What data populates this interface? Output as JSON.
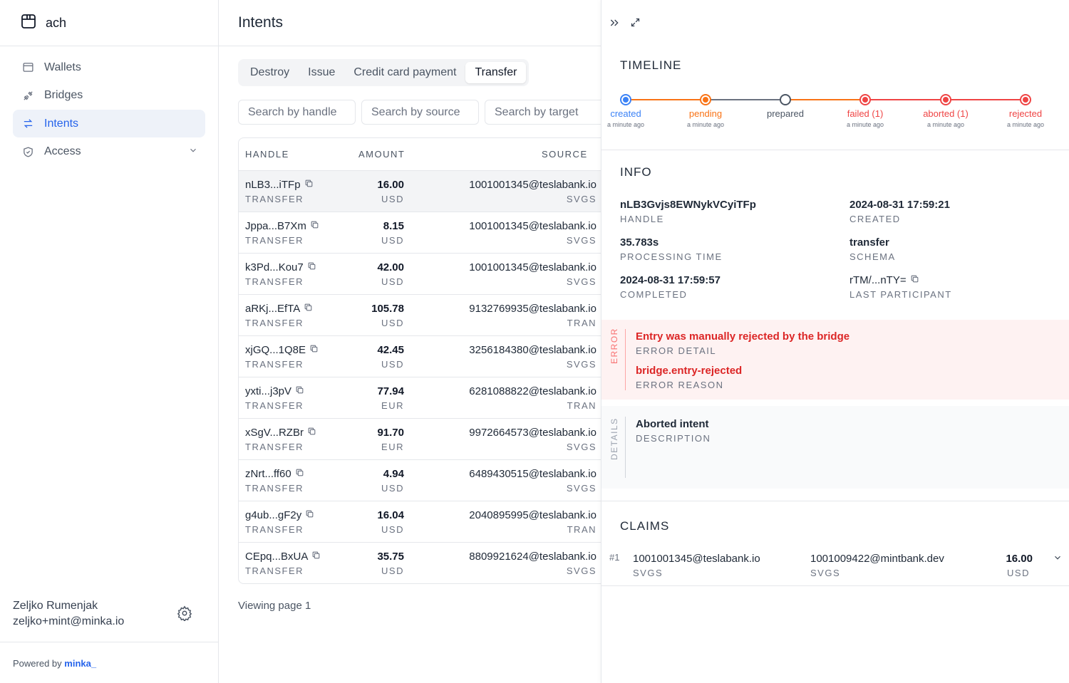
{
  "app": {
    "name": "ach"
  },
  "sidebar": {
    "items": [
      {
        "label": "Wallets",
        "icon": "wallet-icon"
      },
      {
        "label": "Bridges",
        "icon": "plug-icon"
      },
      {
        "label": "Intents",
        "icon": "arrows-swap-icon",
        "active": true
      },
      {
        "label": "Access",
        "icon": "shield-icon",
        "has_submenu": true
      }
    ],
    "user_name": "Zeljko Rumenjak",
    "user_email": "zeljko+mint@minka.io",
    "powered_by": "Powered by",
    "powered_logo": "minka_"
  },
  "main": {
    "title": "Intents",
    "tabs": [
      {
        "label": "Destroy"
      },
      {
        "label": "Issue"
      },
      {
        "label": "Credit card payment"
      },
      {
        "label": "Transfer",
        "active": true
      }
    ],
    "search": {
      "handle_placeholder": "Search by handle",
      "source_placeholder": "Search by source",
      "target_placeholder": "Search by target"
    },
    "columns": {
      "handle": "HANDLE",
      "amount": "AMOUNT",
      "source": "SOURCE"
    },
    "rows": [
      {
        "handle": "nLB3...iTFp",
        "type": "TRANSFER",
        "amount": "16.00",
        "currency": "USD",
        "source": "1001001345@teslabank.io",
        "bank": "SVGS"
      },
      {
        "handle": "Jppa...B7Xm",
        "type": "TRANSFER",
        "amount": "8.15",
        "currency": "USD",
        "source": "1001001345@teslabank.io",
        "bank": "SVGS"
      },
      {
        "handle": "k3Pd...Kou7",
        "type": "TRANSFER",
        "amount": "42.00",
        "currency": "USD",
        "source": "1001001345@teslabank.io",
        "bank": "SVGS"
      },
      {
        "handle": "aRKj...EfTA",
        "type": "TRANSFER",
        "amount": "105.78",
        "currency": "USD",
        "source": "9132769935@teslabank.io",
        "bank": "TRAN"
      },
      {
        "handle": "xjGQ...1Q8E",
        "type": "TRANSFER",
        "amount": "42.45",
        "currency": "USD",
        "source": "3256184380@teslabank.io",
        "bank": "SVGS"
      },
      {
        "handle": "yxti...j3pV",
        "type": "TRANSFER",
        "amount": "77.94",
        "currency": "EUR",
        "source": "6281088822@teslabank.io",
        "bank": "TRAN"
      },
      {
        "handle": "xSgV...RZBr",
        "type": "TRANSFER",
        "amount": "91.70",
        "currency": "EUR",
        "source": "9972664573@teslabank.io",
        "bank": "SVGS"
      },
      {
        "handle": "zNrt...ff60",
        "type": "TRANSFER",
        "amount": "4.94",
        "currency": "USD",
        "source": "6489430515@teslabank.io",
        "bank": "SVGS"
      },
      {
        "handle": "g4ub...gF2y",
        "type": "TRANSFER",
        "amount": "16.04",
        "currency": "USD",
        "source": "2040895995@teslabank.io",
        "bank": "TRAN"
      },
      {
        "handle": "CEpq...BxUA",
        "type": "TRANSFER",
        "amount": "35.75",
        "currency": "USD",
        "source": "8809921624@teslabank.io",
        "bank": "SVGS"
      }
    ],
    "footer": "Viewing page 1"
  },
  "panel": {
    "timeline_title": "TIMELINE",
    "timeline": [
      {
        "label": "created",
        "time": "a minute ago",
        "color": "#3b82f6"
      },
      {
        "label": "pending",
        "time": "a minute ago",
        "color": "#f97316"
      },
      {
        "label": "prepared",
        "time": "",
        "color": "#4b5563"
      },
      {
        "label": "failed (1)",
        "time": "a minute ago",
        "color": "#ef4444"
      },
      {
        "label": "aborted (1)",
        "time": "a minute ago",
        "color": "#ef4444"
      },
      {
        "label": "rejected",
        "time": "a minute ago",
        "color": "#ef4444"
      }
    ],
    "info_title": "INFO",
    "info": {
      "handle_value": "nLB3Gvjs8EWNykVCyiTFp",
      "handle_key": "HANDLE",
      "created_value": "2024-08-31 17:59:21",
      "created_key": "CREATED",
      "processing_value": "35.783s",
      "processing_key": "PROCESSING TIME",
      "schema_value": "transfer",
      "schema_key": "SCHEMA",
      "completed_value": "2024-08-31 17:59:57",
      "completed_key": "COMPLETED",
      "participant_value": "rTM/...nTY=",
      "participant_key": "LAST PARTICIPANT"
    },
    "error": {
      "label": "ERROR",
      "detail_value": "Entry was manually rejected by the bridge",
      "detail_key": "ERROR DETAIL",
      "reason_value": "bridge.entry-rejected",
      "reason_key": "ERROR REASON"
    },
    "details": {
      "label": "DETAILS",
      "description_value": "Aborted intent",
      "description_key": "DESCRIPTION"
    },
    "claims_title": "CLAIMS",
    "claims": [
      {
        "index": "#1",
        "source": "1001001345@teslabank.io",
        "source_bank": "SVGS",
        "target": "1001009422@mintbank.dev",
        "target_bank": "SVGS",
        "amount": "16.00",
        "currency": "USD"
      }
    ]
  }
}
